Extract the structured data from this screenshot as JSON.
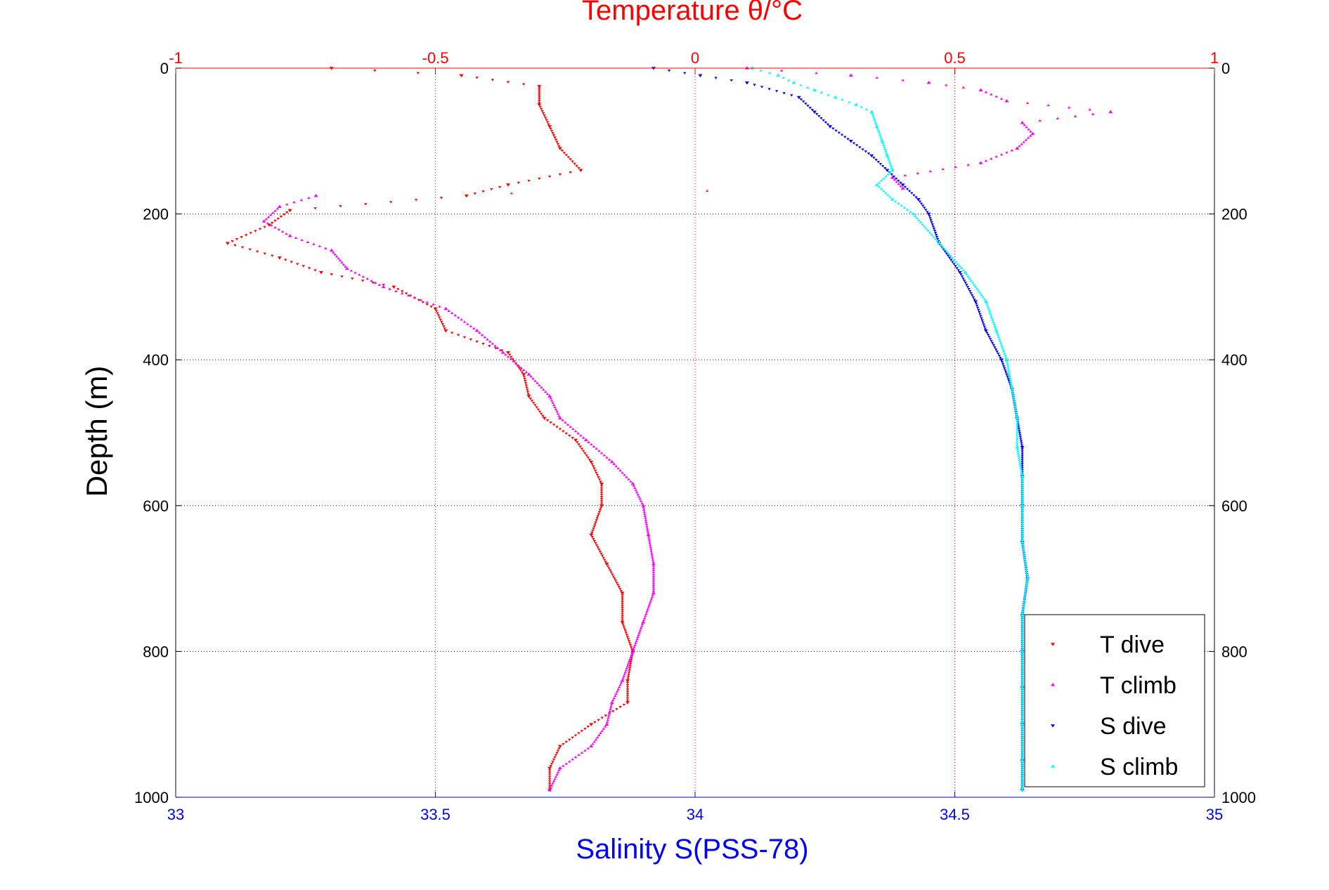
{
  "chart_data": {
    "type": "scatter",
    "title": "Temperature θ/°C",
    "xlabel": "Salinity S(PSS-78)",
    "ylabel": "Depth (m)",
    "x_salinity_lim": [
      33,
      35
    ],
    "x_salinity_ticks": [
      "33",
      "33.5",
      "34",
      "34.5",
      "35"
    ],
    "x_temperature_lim": [
      -1,
      1
    ],
    "x_temperature_ticks": [
      "-1",
      "-0.5",
      "0",
      "0.5",
      "1"
    ],
    "ylim": [
      0,
      1000
    ],
    "y_reversed": true,
    "y_ticks": [
      "0",
      "200",
      "400",
      "600",
      "800",
      "1000"
    ],
    "grid": true,
    "legend_position": "bottom-right",
    "colors": {
      "temperature_axis": "#ff0000",
      "salinity_axis": "#0000ff",
      "t_dive": "#ff0000",
      "t_climb": "#ff00ff",
      "s_dive": "#0000ff",
      "s_climb": "#00ffff"
    },
    "series": [
      {
        "name": "T dive",
        "axis": "temperature",
        "marker": "triangle-down",
        "depth": [
          0,
          10,
          25,
          50,
          80,
          110,
          140,
          160,
          175,
          195,
          215,
          240,
          260,
          280,
          300,
          330,
          360,
          390,
          420,
          450,
          480,
          510,
          540,
          570,
          600,
          640,
          680,
          720,
          760,
          800,
          840,
          870,
          900,
          930,
          960,
          990
        ],
        "values": [
          -0.7,
          -0.45,
          -0.3,
          -0.3,
          -0.28,
          -0.26,
          -0.22,
          -0.36,
          -0.44,
          -0.78,
          -0.82,
          -0.9,
          -0.8,
          -0.72,
          -0.58,
          -0.5,
          -0.48,
          -0.36,
          -0.33,
          -0.32,
          -0.29,
          -0.23,
          -0.2,
          -0.18,
          -0.18,
          -0.2,
          -0.17,
          -0.14,
          -0.14,
          -0.12,
          -0.13,
          -0.13,
          -0.2,
          -0.26,
          -0.28,
          -0.28
        ]
      },
      {
        "name": "T climb",
        "axis": "temperature",
        "marker": "triangle-up",
        "depth": [
          0,
          10,
          20,
          30,
          45,
          60,
          75,
          90,
          110,
          130,
          150,
          165,
          175,
          190,
          210,
          230,
          250,
          275,
          300,
          330,
          360,
          390,
          420,
          450,
          480,
          510,
          540,
          570,
          600,
          640,
          680,
          720,
          760,
          800,
          840,
          870,
          900,
          930,
          960,
          990
        ],
        "values": [
          0.1,
          0.3,
          0.45,
          0.55,
          0.6,
          0.8,
          0.63,
          0.65,
          0.62,
          0.55,
          0.38,
          0.4,
          -0.73,
          -0.8,
          -0.83,
          -0.78,
          -0.7,
          -0.67,
          -0.6,
          -0.48,
          -0.42,
          -0.37,
          -0.32,
          -0.28,
          -0.26,
          -0.21,
          -0.16,
          -0.12,
          -0.1,
          -0.09,
          -0.08,
          -0.08,
          -0.1,
          -0.12,
          -0.14,
          -0.16,
          -0.17,
          -0.2,
          -0.26,
          -0.28
        ]
      },
      {
        "name": "S dive",
        "axis": "salinity",
        "marker": "triangle-down",
        "depth": [
          0,
          10,
          20,
          40,
          60,
          80,
          100,
          120,
          140,
          160,
          180,
          200,
          240,
          280,
          320,
          360,
          400,
          440,
          480,
          520,
          560,
          600,
          650,
          700,
          750,
          800,
          850,
          900,
          950,
          990
        ],
        "values": [
          33.92,
          34.01,
          34.1,
          34.2,
          34.23,
          34.26,
          34.3,
          34.34,
          34.37,
          34.4,
          34.43,
          34.45,
          34.47,
          34.51,
          34.54,
          34.56,
          34.59,
          34.61,
          34.62,
          34.63,
          34.63,
          34.63,
          34.63,
          34.64,
          34.63,
          34.63,
          34.63,
          34.63,
          34.63,
          34.63
        ]
      },
      {
        "name": "S climb",
        "axis": "salinity",
        "marker": "triangle-up",
        "depth": [
          0,
          10,
          20,
          30,
          40,
          50,
          60,
          80,
          100,
          120,
          140,
          160,
          180,
          200,
          240,
          280,
          320,
          360,
          400,
          440,
          480,
          520,
          560,
          600,
          650,
          700,
          750,
          800,
          850,
          900,
          950,
          990
        ],
        "values": [
          34.11,
          34.16,
          34.19,
          34.23,
          34.27,
          34.31,
          34.34,
          34.35,
          34.36,
          34.37,
          34.38,
          34.35,
          34.38,
          34.42,
          34.47,
          34.52,
          34.56,
          34.58,
          34.6,
          34.61,
          34.62,
          34.62,
          34.63,
          34.63,
          34.63,
          34.64,
          34.63,
          34.63,
          34.63,
          34.63,
          34.63,
          34.63
        ]
      }
    ]
  }
}
